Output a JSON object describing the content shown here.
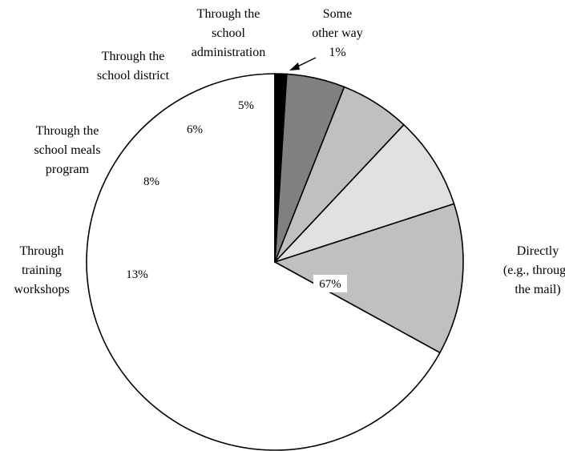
{
  "chart_data": {
    "type": "pie",
    "slices": [
      {
        "label_lines": [
          "Directly",
          "(e.g., through",
          "the mail)"
        ],
        "value": 67,
        "value_label": "67%",
        "color": "#ffffff"
      },
      {
        "label_lines": [
          "Through",
          "training",
          "workshops"
        ],
        "value": 13,
        "value_label": "13%",
        "color": "#c0c0c0"
      },
      {
        "label_lines": [
          "Through the",
          "school meals",
          "program"
        ],
        "value": 8,
        "value_label": "8%",
        "color": "#e0e0e0"
      },
      {
        "label_lines": [
          "Through the",
          "school district"
        ],
        "value": 6,
        "value_label": "6%",
        "color": "#c0c0c0"
      },
      {
        "label_lines": [
          "Through the",
          "school",
          "administration"
        ],
        "value": 5,
        "value_label": "5%",
        "color": "#808080"
      },
      {
        "label_lines": [
          "Some",
          "other way",
          "1%"
        ],
        "value": 1,
        "value_label": "",
        "color": "#000000"
      }
    ],
    "legend": "none"
  }
}
